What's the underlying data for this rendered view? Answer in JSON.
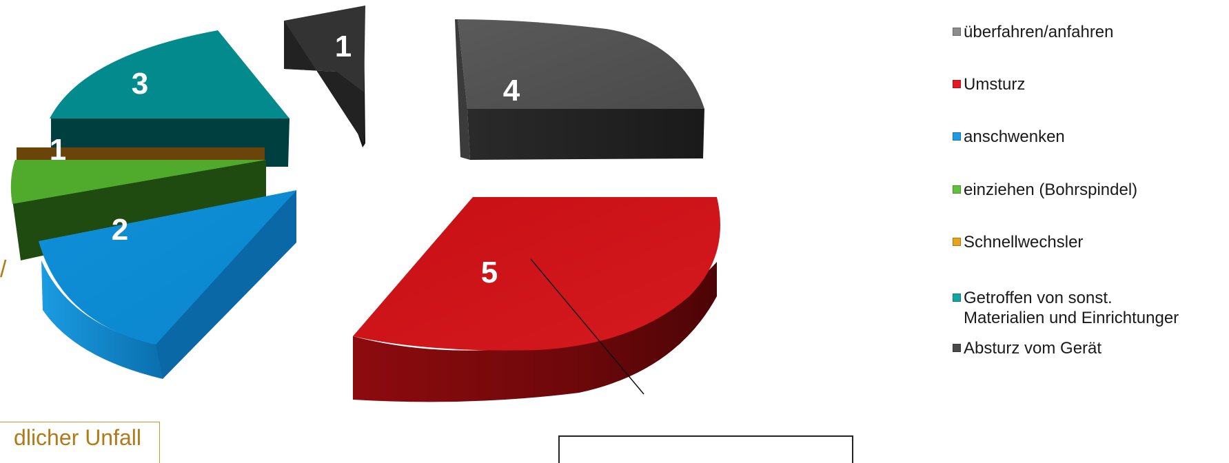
{
  "chart_data": {
    "type": "pie",
    "title": "",
    "exploded": true,
    "three_d": true,
    "slices": [
      {
        "label": "überfahren/anfahren",
        "value": 4,
        "color": "#555555"
      },
      {
        "label": "Umsturz",
        "value": 5,
        "color": "#d01216"
      },
      {
        "label": "anschwenken",
        "value": 2,
        "color": "#0e8fd6"
      },
      {
        "label": "einziehen (Bohrspindel)",
        "value": 1,
        "color": "#4ea82a"
      },
      {
        "label": "Schnellwechsler",
        "value": 1,
        "color": "#6b4410"
      },
      {
        "label": "Getroffen von sonst.\nMaterialien und Einrichtungen",
        "value": 3,
        "color": "#00888a"
      },
      {
        "label": "Absturz vom Gerät",
        "value": 1,
        "color": "#2a2a2a"
      }
    ],
    "legend": {
      "placement": "right",
      "items": [
        {
          "label": "überfahren/anfahren",
          "color": "#8c8c8c"
        },
        {
          "label": "Umsturz",
          "color": "#e21c24"
        },
        {
          "label": "anschwenken",
          "color": "#1e9be3"
        },
        {
          "label": "einziehen (Bohrspindel)",
          "color": "#5ec23a"
        },
        {
          "label": "Schnellwechsler",
          "color": "#e8a21c"
        },
        {
          "label": "Getroffen von sonst.\nMaterialien und Einrichtunger",
          "color": "#13a5a6"
        },
        {
          "label": "Absturz vom Gerät",
          "color": "#4a4a4a"
        }
      ]
    }
  },
  "annotations": {
    "side_note": "dlicher Unfall",
    "slash": "/"
  }
}
